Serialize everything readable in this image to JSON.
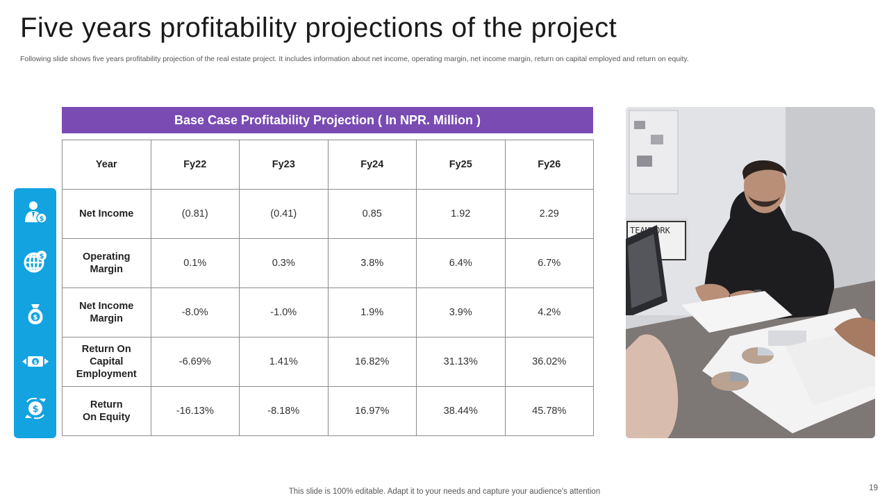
{
  "slide": {
    "title": "Five years profitability projections of the project",
    "subtitle": "Following slide shows five years profitability projection of the real estate project. It includes information about net income, operating margin, net income margin, return on capital employed and return on equity.",
    "footer": "This slide is 100% editable. Adapt it to your needs and capture your audience's attention",
    "page_number": "19"
  },
  "table": {
    "banner": "Base Case Profitability  Projection ( In NPR. Million )",
    "header": [
      "Year",
      "Fy22",
      "Fy23",
      "Fy24",
      "Fy25",
      "Fy26"
    ],
    "rows": [
      {
        "label_lines": [
          "Net Income"
        ],
        "values": [
          "(0.81)",
          "(0.41)",
          "0.85",
          "1.92",
          "2.29"
        ]
      },
      {
        "label_lines": [
          "Operating",
          "Margin"
        ],
        "values": [
          "0.1%",
          "0.3%",
          "3.8%",
          "6.4%",
          "6.7%"
        ]
      },
      {
        "label_lines": [
          "Net Income",
          "Margin"
        ],
        "values": [
          "-8.0%",
          "-1.0%",
          "1.9%",
          "3.9%",
          "4.2%"
        ]
      },
      {
        "label_lines": [
          "Return On",
          "Capital",
          "Employment"
        ],
        "values": [
          "-6.69%",
          "1.41%",
          "16.82%",
          "31.13%",
          "36.02%"
        ]
      },
      {
        "label_lines": [
          "Return",
          "On Equity"
        ],
        "values": [
          "-16.13%",
          "-8.18%",
          "16.97%",
          "38.44%",
          "45.78%"
        ]
      }
    ]
  },
  "sidebar": {
    "color": "#12a3e0",
    "icons": [
      "businessman-dollar-icon",
      "globe-dollar-icon",
      "money-bag-icon",
      "cash-transfer-icon",
      "coin-exchange-icon"
    ]
  },
  "photo": {
    "board_text": "TEAMWORK"
  },
  "colors": {
    "banner": "#7a4bb3",
    "grid_border": "#8c8c8c"
  }
}
